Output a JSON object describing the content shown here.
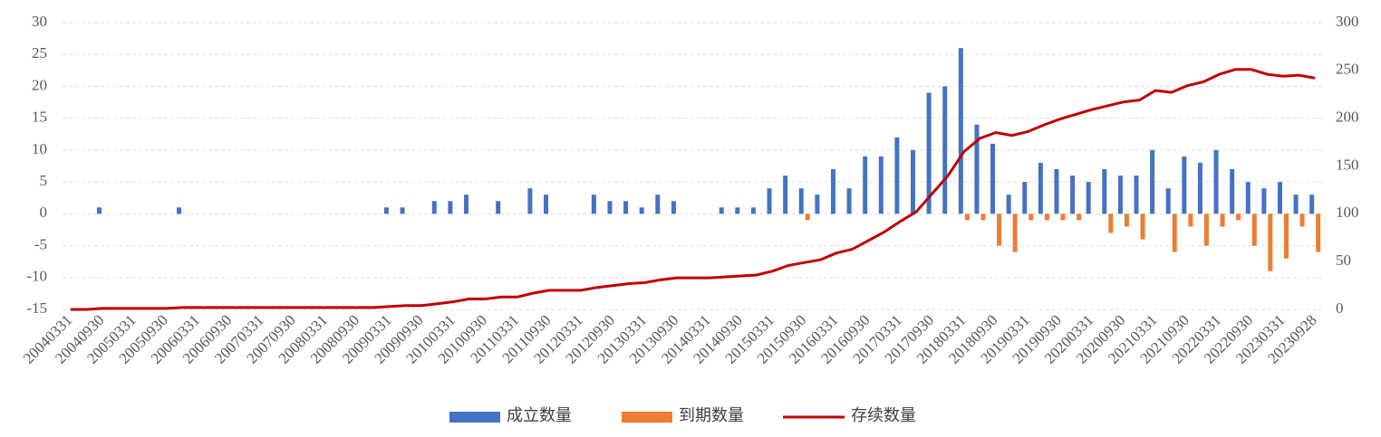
{
  "chart_data": {
    "type": "bar-line",
    "categories": [
      "20040331",
      null,
      "20040930",
      null,
      "20050331",
      null,
      "20050930",
      null,
      "20060331",
      null,
      "20060930",
      null,
      "20070331",
      null,
      "20070930",
      null,
      "20080331",
      null,
      "20080930",
      null,
      "20090331",
      null,
      "20090930",
      null,
      "20100331",
      null,
      "20100930",
      null,
      "20110331",
      null,
      "20110930",
      null,
      "20120331",
      null,
      "20120930",
      null,
      "20130331",
      null,
      "20130930",
      null,
      "20140331",
      null,
      "20140930",
      null,
      "20150331",
      null,
      "20150930",
      null,
      "20160331",
      null,
      "20160930",
      null,
      "20170331",
      null,
      "20170930",
      null,
      "20180331",
      null,
      "20180930",
      null,
      "20190331",
      null,
      "20190930",
      null,
      "20200331",
      null,
      "20200930",
      null,
      "20210331",
      null,
      "20210930",
      null,
      "20220331",
      null,
      "20220930",
      null,
      "20230331",
      null,
      "20230928"
    ],
    "series": [
      {
        "name": "成立数量",
        "color": "#4472c4",
        "kind": "bar",
        "values": [
          0,
          0,
          1,
          0,
          0,
          0,
          0,
          1,
          0,
          0,
          0,
          0,
          0,
          0,
          0,
          0,
          0,
          0,
          0,
          0,
          1,
          1,
          0,
          2,
          2,
          3,
          0,
          2,
          0,
          4,
          3,
          0,
          0,
          3,
          2,
          2,
          1,
          3,
          2,
          0,
          0,
          1,
          1,
          1,
          4,
          6,
          4,
          3,
          7,
          4,
          9,
          9,
          12,
          10,
          19,
          20,
          26,
          14,
          11,
          3,
          5,
          8,
          7,
          6,
          5,
          7,
          6,
          6,
          10,
          4,
          9,
          8,
          10,
          7,
          5,
          4,
          5,
          3,
          3
        ]
      },
      {
        "name": "到期数量",
        "color": "#ed7d31",
        "kind": "bar",
        "values": [
          0,
          0,
          0,
          0,
          0,
          0,
          0,
          0,
          0,
          0,
          0,
          0,
          0,
          0,
          0,
          0,
          0,
          0,
          0,
          0,
          0,
          0,
          0,
          0,
          0,
          0,
          0,
          0,
          0,
          0,
          0,
          0,
          0,
          0,
          0,
          0,
          0,
          0,
          0,
          0,
          0,
          0,
          0,
          0,
          0,
          0,
          -1,
          0,
          0,
          0,
          0,
          0,
          0,
          0,
          0,
          0,
          -1,
          -1,
          -5,
          -6,
          -1,
          -1,
          -1,
          -1,
          0,
          -3,
          -2,
          -4,
          0,
          -6,
          -2,
          -5,
          -2,
          -1,
          -5,
          -9,
          -7,
          -2,
          -6
        ]
      },
      {
        "name": "存续数量",
        "color": "#c00000",
        "kind": "line",
        "axis": "y2",
        "values": [
          0,
          0,
          1,
          1,
          1,
          1,
          1,
          2,
          2,
          2,
          2,
          2,
          2,
          2,
          2,
          2,
          2,
          2,
          2,
          2,
          3,
          4,
          4,
          6,
          8,
          11,
          11,
          13,
          13,
          17,
          20,
          20,
          20,
          23,
          25,
          27,
          28,
          31,
          33,
          33,
          33,
          34,
          35,
          36,
          40,
          46,
          49,
          52,
          59,
          63,
          72,
          81,
          92,
          102,
          121,
          140,
          165,
          179,
          185,
          182,
          186,
          193,
          199,
          204,
          209,
          213,
          217,
          219,
          229,
          227,
          234,
          238,
          246,
          251,
          251,
          246,
          244,
          245,
          242
        ]
      }
    ],
    "ylim": [
      -15,
      30
    ],
    "yticks": [
      -15,
      -10,
      -5,
      0,
      5,
      10,
      15,
      20,
      25,
      30
    ],
    "y2lim": [
      0,
      300
    ],
    "y2ticks": [
      0,
      50,
      100,
      150,
      200,
      250,
      300
    ],
    "grid": true,
    "legend": "bottom"
  }
}
